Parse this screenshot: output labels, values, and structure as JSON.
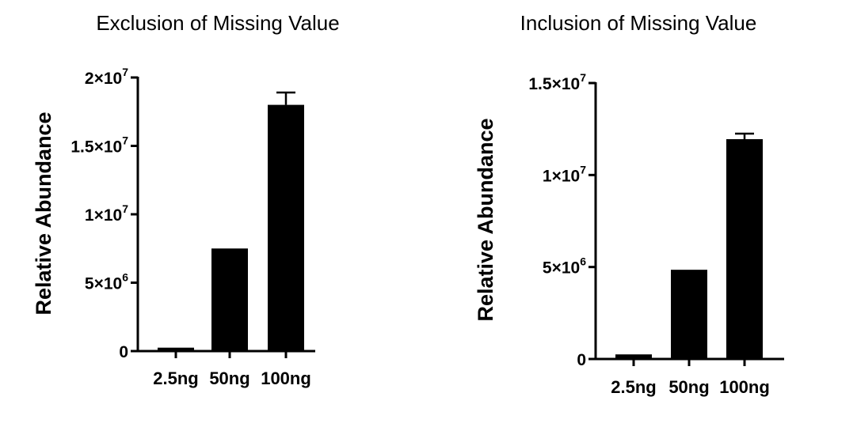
{
  "chart_data": [
    {
      "type": "bar",
      "title": "Exclusion of  Missing Value",
      "ylabel": "Relative Abundance",
      "xlabel": "",
      "categories": [
        "2.5ng",
        "50ng",
        "100ng"
      ],
      "values": [
        250000,
        7500000,
        18000000
      ],
      "error_plus": [
        0,
        0,
        900000
      ],
      "ylim": [
        0,
        20000000
      ],
      "yticks": [
        {
          "value": 0,
          "label": "0"
        },
        {
          "value": 5000000,
          "mantissa": "5×10",
          "exp": "6"
        },
        {
          "value": 10000000,
          "mantissa": "1×10",
          "exp": "7"
        },
        {
          "value": 15000000,
          "mantissa": "1.5×10",
          "exp": "7"
        },
        {
          "value": 20000000,
          "mantissa": "2×10",
          "exp": "7"
        }
      ],
      "grid": false,
      "bar_color": "#000000"
    },
    {
      "type": "bar",
      "title": "Inclusion of Missing Value",
      "ylabel": "Relative Abundance",
      "xlabel": "",
      "categories": [
        "2.5ng",
        "50ng",
        "100ng"
      ],
      "values": [
        250000,
        4850000,
        11950000
      ],
      "error_plus": [
        0,
        0,
        300000
      ],
      "ylim": [
        0,
        15000000
      ],
      "yticks": [
        {
          "value": 0,
          "label": "0"
        },
        {
          "value": 5000000,
          "mantissa": "5×10",
          "exp": "6"
        },
        {
          "value": 10000000,
          "mantissa": "1×10",
          "exp": "7"
        },
        {
          "value": 15000000,
          "mantissa": "1.5×10",
          "exp": "7"
        }
      ],
      "grid": false,
      "bar_color": "#000000"
    }
  ]
}
